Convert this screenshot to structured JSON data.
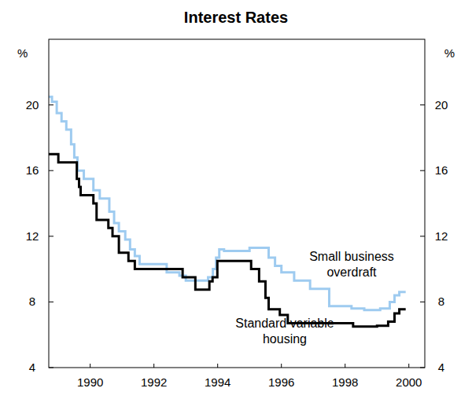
{
  "chart_data": {
    "type": "line",
    "title": "Interest Rates",
    "y_unit": "%",
    "line_style": "step",
    "xlim": [
      1989.2,
      2001.0
    ],
    "xticks": [
      {
        "value": 1990.5,
        "label": "1990"
      },
      {
        "value": 1992.5,
        "label": "1992"
      },
      {
        "value": 1994.5,
        "label": "1994"
      },
      {
        "value": 1996.5,
        "label": "1996"
      },
      {
        "value": 1998.5,
        "label": "1998"
      },
      {
        "value": 2000.5,
        "label": "2000"
      }
    ],
    "ylim": [
      4,
      24
    ],
    "yticks": [
      4,
      8,
      12,
      16,
      20
    ],
    "grid": false,
    "series": [
      {
        "name": "Small business overdraft",
        "color": "#9ecbf0",
        "x": [
          1989.2,
          1989.3,
          1989.45,
          1989.6,
          1989.75,
          1989.9,
          1990.0,
          1990.1,
          1990.3,
          1990.6,
          1990.8,
          1991.1,
          1991.25,
          1991.4,
          1991.6,
          1991.75,
          1991.9,
          1992.05,
          1992.9,
          1993.3,
          1993.5,
          1994.2,
          1994.35,
          1994.45,
          1994.55,
          1994.7,
          1995.5,
          1996.1,
          1996.3,
          1996.5,
          1996.9,
          1997.4,
          1998.0,
          1998.7,
          1999.1,
          1999.6,
          1999.9,
          2000.05,
          2000.2,
          2000.4
        ],
        "values": [
          20.5,
          20.2,
          19.5,
          19.0,
          18.5,
          17.6,
          16.8,
          16.0,
          15.5,
          14.8,
          14.3,
          13.5,
          12.8,
          12.3,
          11.8,
          11.2,
          10.8,
          10.3,
          9.8,
          9.6,
          9.3,
          9.5,
          10.0,
          10.7,
          11.2,
          11.1,
          11.3,
          10.7,
          10.2,
          9.8,
          9.3,
          8.8,
          7.75,
          7.6,
          7.5,
          7.6,
          8.0,
          8.4,
          8.6,
          8.6
        ]
      },
      {
        "name": "Standard variable housing",
        "color": "#000000",
        "x": [
          1989.2,
          1989.5,
          1990.08,
          1990.15,
          1990.2,
          1990.6,
          1990.7,
          1991.07,
          1991.2,
          1991.4,
          1991.7,
          1991.9,
          1993.4,
          1993.8,
          1994.24,
          1994.34,
          1994.49,
          1995.55,
          1995.8,
          1996.0,
          1996.1,
          1996.45,
          1996.7,
          1998.75,
          1999.5,
          1999.85,
          2000.05,
          2000.2,
          2000.4
        ],
        "values": [
          17.0,
          16.5,
          15.5,
          15.0,
          14.5,
          14.0,
          13.0,
          12.5,
          12.0,
          11.0,
          10.5,
          10.0,
          9.5,
          8.75,
          9.25,
          9.5,
          10.5,
          10.0,
          9.25,
          8.25,
          7.55,
          7.2,
          6.7,
          6.5,
          6.55,
          6.8,
          7.3,
          7.55,
          7.55
        ]
      }
    ]
  }
}
